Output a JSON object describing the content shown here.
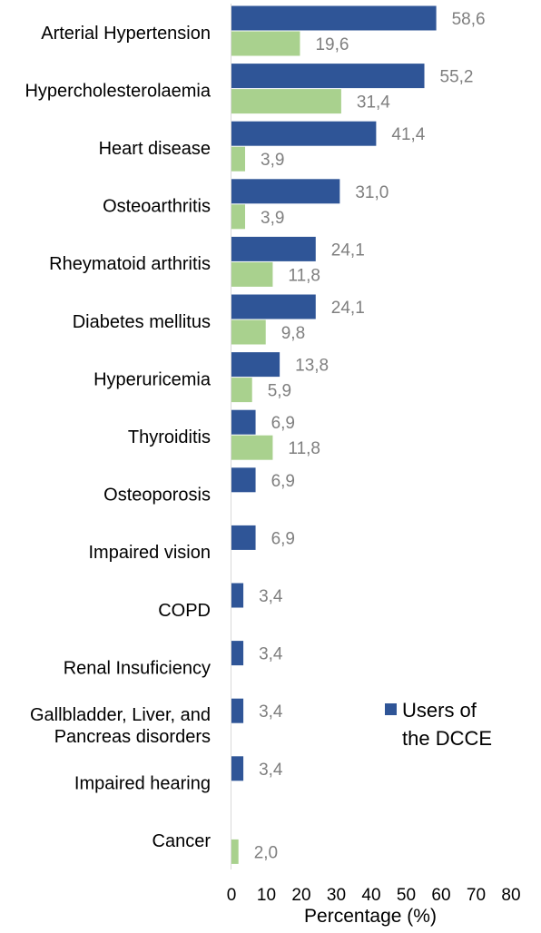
{
  "chart_data": {
    "type": "bar",
    "orientation": "horizontal",
    "categories": [
      [
        "Arterial Hypertension"
      ],
      [
        "Hypercholesterolaemia"
      ],
      [
        "Heart disease"
      ],
      [
        "Osteoarthritis"
      ],
      [
        "Rheymatoid arthritis"
      ],
      [
        "Diabetes mellitus"
      ],
      [
        "Hyperuricemia"
      ],
      [
        "Thyroiditis"
      ],
      [
        "Osteoporosis"
      ],
      [
        "Impaired vision"
      ],
      [
        "COPD"
      ],
      [
        "Renal Insuficiency"
      ],
      [
        "Gallbladder, Liver, and",
        "Pancreas disorders"
      ],
      [
        "Impaired hearing"
      ],
      [
        "Cancer"
      ]
    ],
    "series": [
      {
        "name": "Users of the DCCE",
        "legend_lines": [
          "Users of",
          "the DCCE"
        ],
        "color": "#2f5597",
        "values": [
          58.6,
          55.2,
          41.4,
          31.0,
          24.1,
          24.1,
          13.8,
          6.9,
          6.9,
          6.9,
          3.4,
          3.4,
          3.4,
          3.4,
          null
        ],
        "labels": [
          "58,6",
          "55,2",
          "41,4",
          "31,0",
          "24,1",
          "24,1",
          "13,8",
          "6,9",
          "6,9",
          "6,9",
          "3,4",
          "3,4",
          "3,4",
          "3,4",
          ""
        ]
      },
      {
        "color": "#a9d18e",
        "values": [
          19.6,
          31.4,
          3.9,
          3.9,
          11.8,
          9.8,
          5.9,
          11.8,
          null,
          null,
          null,
          null,
          null,
          null,
          2.0
        ],
        "labels": [
          "19,6",
          "31,4",
          "3,9",
          "3,9",
          "11,8",
          "9,8",
          "5,9",
          "11,8",
          "",
          "",
          "",
          "",
          "",
          "",
          "2,0"
        ]
      }
    ],
    "xlim": [
      0,
      80
    ],
    "xticks": [
      "0",
      "10",
      "20",
      "30",
      "40",
      "50",
      "60",
      "70",
      "80"
    ],
    "xlabel": "Percentage (%)",
    "ylabel": "",
    "title": "",
    "grid": false,
    "legend_position": "lower-right"
  }
}
